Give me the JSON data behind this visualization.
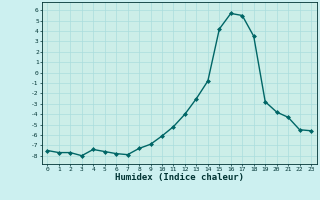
{
  "x": [
    0,
    1,
    2,
    3,
    4,
    5,
    6,
    7,
    8,
    9,
    10,
    11,
    12,
    13,
    14,
    15,
    16,
    17,
    18,
    19,
    20,
    21,
    22,
    23
  ],
  "y": [
    -7.5,
    -7.7,
    -7.7,
    -8.0,
    -7.4,
    -7.6,
    -7.8,
    -7.9,
    -7.3,
    -6.9,
    -6.1,
    -5.2,
    -4.0,
    -2.5,
    -0.8,
    4.2,
    5.7,
    5.5,
    3.5,
    -2.8,
    -3.8,
    -4.3,
    -5.5,
    -5.6
  ],
  "title": "",
  "xlabel": "Humidex (Indice chaleur)",
  "xlim": [
    -0.5,
    23.5
  ],
  "ylim": [
    -8.8,
    6.8
  ],
  "xticks": [
    0,
    1,
    2,
    3,
    4,
    5,
    6,
    7,
    8,
    9,
    10,
    11,
    12,
    13,
    14,
    15,
    16,
    17,
    18,
    19,
    20,
    21,
    22,
    23
  ],
  "yticks": [
    -8,
    -7,
    -6,
    -5,
    -4,
    -3,
    -2,
    -1,
    0,
    1,
    2,
    3,
    4,
    5,
    6
  ],
  "line_color": "#006666",
  "marker_color": "#006666",
  "bg_color": "#ccf0f0",
  "grid_color": "#aadddd",
  "plot_bg": "#cceee8"
}
